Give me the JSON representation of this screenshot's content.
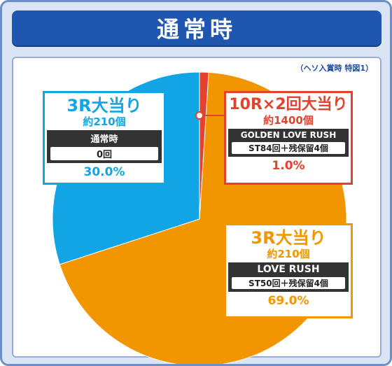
{
  "title": "通常時",
  "note": "（ヘソ入賞時 特図1）",
  "chart_data": {
    "type": "pie",
    "slices": [
      {
        "label": "10R×2回大当り",
        "value": 1.0,
        "color": "#e4412e"
      },
      {
        "label": "3R大当り",
        "value": 69.0,
        "color": "#f29600"
      },
      {
        "label": "3R大当り",
        "value": 30.0,
        "color": "#12a5e6"
      }
    ]
  },
  "labels": {
    "blue": {
      "title": "3R大当り",
      "sub": "約210個",
      "mode": "通常時",
      "detail": "0回",
      "pct": "30.0%"
    },
    "red": {
      "title": "10R×2回大当り",
      "sub": "約1400個",
      "mode": "GOLDEN LOVE RUSH",
      "detail": "ST84回＋残保留4個",
      "pct": "1.0%"
    },
    "orange": {
      "title": "3R大当り",
      "sub": "約210個",
      "mode": "LOVE RUSH",
      "detail": "ST50回＋残保留4個",
      "pct": "69.0%"
    }
  }
}
